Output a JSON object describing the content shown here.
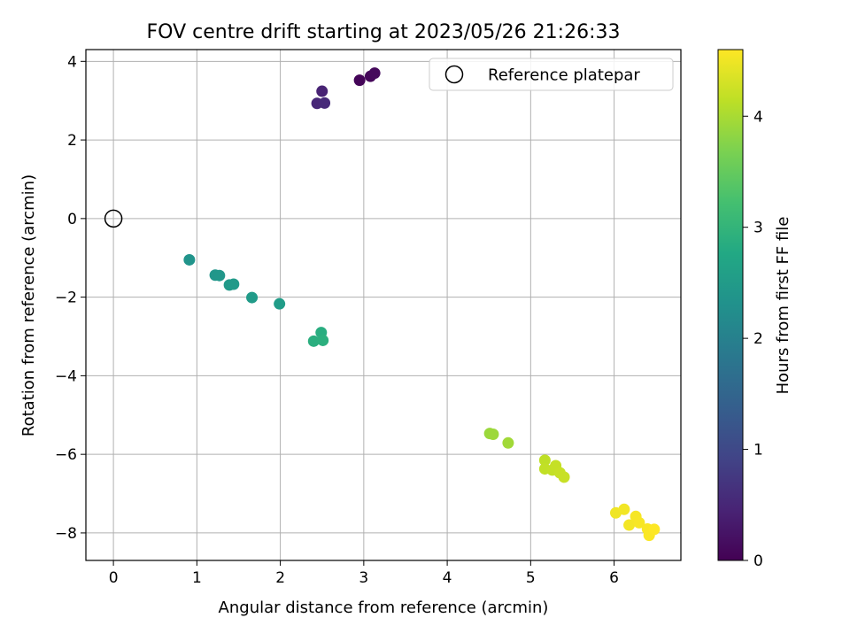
{
  "chart_data": {
    "type": "scatter",
    "title": "FOV centre drift starting at 2023/05/26 21:26:33",
    "xlabel": "Angular distance from reference (arcmin)",
    "ylabel": "Rotation from reference (arcmin)",
    "xlim": [
      -0.33,
      6.8
    ],
    "ylim": [
      -8.7,
      4.3
    ],
    "xticks": [
      0,
      1,
      2,
      3,
      4,
      5,
      6
    ],
    "xtick_labels": [
      "0",
      "1",
      "2",
      "3",
      "4",
      "5",
      "6"
    ],
    "yticks": [
      4,
      2,
      0,
      -2,
      -4,
      -6,
      -8
    ],
    "ytick_labels": [
      "4",
      "2",
      "0",
      "−2",
      "−4",
      "−6",
      "−8"
    ],
    "grid": true,
    "legend": {
      "placement": "upper-right",
      "entries": [
        "Reference platepar"
      ]
    },
    "reference_point": {
      "x": 0,
      "y": 0
    },
    "colormap": "viridis",
    "colorbar": {
      "label": "Hours from first FF file",
      "range": [
        0,
        4.6
      ],
      "ticks": [
        0,
        1,
        2,
        3,
        4
      ],
      "tick_labels": [
        "0",
        "1",
        "2",
        "3",
        "4"
      ]
    },
    "series": [
      {
        "x": [
          2.95,
          3.08,
          3.13,
          2.5,
          2.44,
          2.53,
          0.91,
          1.22,
          1.27,
          1.39,
          1.44,
          1.66,
          1.99,
          2.49,
          2.4,
          2.51,
          4.51,
          4.55,
          4.73,
          5.17,
          5.17,
          5.26,
          5.3,
          5.35,
          5.4,
          6.02,
          6.12,
          6.18,
          6.26,
          6.3,
          6.4,
          6.42,
          6.48
        ],
        "y": [
          3.52,
          3.62,
          3.7,
          3.24,
          2.93,
          2.94,
          -1.05,
          -1.44,
          -1.45,
          -1.69,
          -1.67,
          -2.01,
          -2.17,
          -2.9,
          -3.12,
          -3.1,
          -5.47,
          -5.49,
          -5.71,
          -6.15,
          -6.37,
          -6.4,
          -6.29,
          -6.47,
          -6.58,
          -7.49,
          -7.4,
          -7.8,
          -7.58,
          -7.74,
          -7.9,
          -8.06,
          -7.91
        ],
        "hours": [
          0.05,
          0.08,
          0.1,
          0.45,
          0.5,
          0.55,
          2.35,
          2.4,
          2.42,
          2.45,
          2.47,
          2.5,
          2.52,
          2.85,
          2.88,
          2.9,
          3.9,
          3.92,
          3.95,
          4.15,
          4.17,
          4.18,
          4.2,
          4.21,
          4.22,
          4.5,
          4.52,
          4.53,
          4.55,
          4.56,
          4.57,
          4.58,
          4.6
        ]
      }
    ]
  }
}
